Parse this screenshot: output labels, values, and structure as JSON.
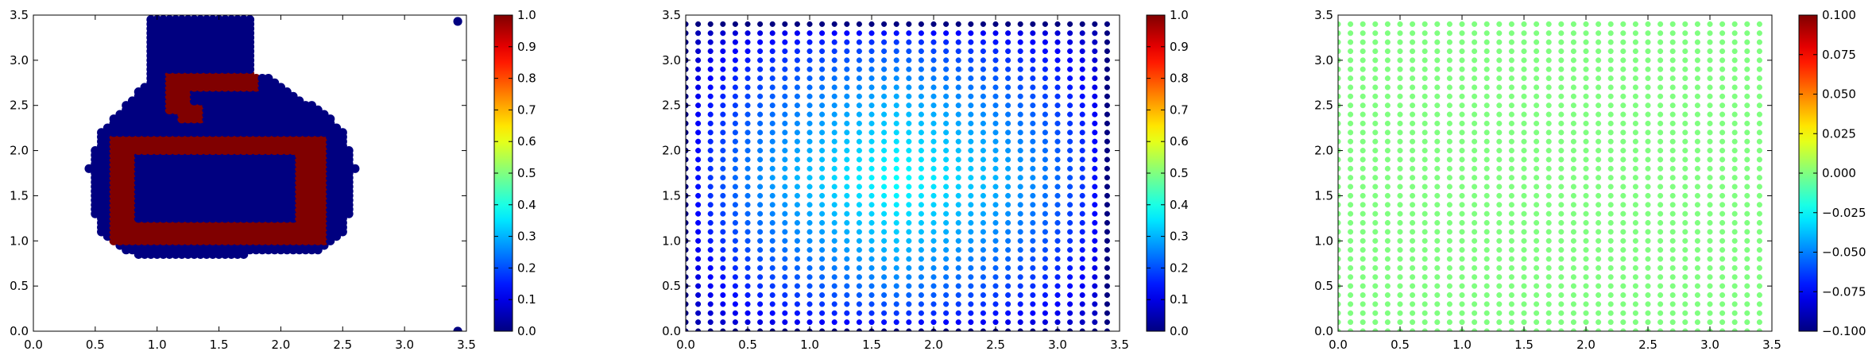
{
  "chart_data": [
    {
      "type": "scatter",
      "title": "",
      "xlabel": "",
      "ylabel": "",
      "xlim": [
        0,
        3.5
      ],
      "ylim": [
        0,
        3.5
      ],
      "grid": false,
      "x_ticks": [
        "0.0",
        "0.5",
        "1.0",
        "1.5",
        "2.0",
        "2.5",
        "3.0",
        "3.5"
      ],
      "y_ticks": [
        "0.0",
        "0.5",
        "1.0",
        "1.5",
        "2.0",
        "2.5",
        "3.0",
        "3.5"
      ],
      "colorbar": {
        "range": [
          0,
          1
        ],
        "colormap": "jet",
        "ticks": [
          "0.0",
          "0.1",
          "0.2",
          "0.3",
          "0.4",
          "0.5",
          "0.6",
          "0.7",
          "0.8",
          "0.9",
          "1.0"
        ]
      },
      "grid_points": {
        "start": 0.0,
        "stop": 3.45,
        "step": 0.05
      },
      "description": "bottle-shaped region of points with values 0 (blue) and a rectangular ring plus hook with value 1 (red)",
      "shape": {
        "neck": {
          "x_range": [
            0.95,
            1.75
          ],
          "y_range": [
            2.8,
            3.45
          ]
        },
        "body_rows": [
          [
            0.85,
            0.85,
            1.7
          ],
          [
            0.9,
            0.75,
            2.3
          ],
          [
            1.0,
            0.65,
            2.4
          ],
          [
            1.1,
            0.55,
            2.5
          ],
          [
            1.3,
            0.5,
            2.55
          ],
          [
            1.8,
            0.45,
            2.6
          ],
          [
            2.0,
            0.5,
            2.55
          ],
          [
            2.2,
            0.55,
            2.5
          ],
          [
            2.35,
            0.65,
            2.4
          ],
          [
            2.5,
            0.75,
            2.25
          ],
          [
            2.65,
            0.85,
            2.05
          ],
          [
            2.8,
            0.95,
            1.9
          ]
        ],
        "value_one_regions": [
          {
            "name": "ring-outer",
            "x_range": [
              0.65,
              2.35
            ],
            "y_range": [
              1.0,
              2.15
            ],
            "value": 1
          },
          {
            "name": "ring-hole",
            "x_range": [
              0.85,
              2.1
            ],
            "y_range": [
              1.25,
              1.95
            ],
            "value": 0
          },
          {
            "name": "hook-top",
            "x_range": [
              1.1,
              1.8
            ],
            "y_range": [
              2.7,
              2.85
            ],
            "value": 1
          },
          {
            "name": "hook-side",
            "x_range": [
              1.1,
              1.25
            ],
            "y_range": [
              2.45,
              2.85
            ],
            "value": 1
          },
          {
            "name": "hook-foot",
            "x_range": [
              1.2,
              1.35
            ],
            "y_range": [
              2.35,
              2.5
            ],
            "value": 1
          }
        ],
        "outlier_point": {
          "x": 3.43,
          "y": 3.43,
          "value": 0
        },
        "outlier_point_bottom": {
          "x": 3.43,
          "y": 0.0,
          "value": 0
        }
      }
    },
    {
      "type": "scatter",
      "title": "",
      "xlabel": "",
      "ylabel": "",
      "xlim": [
        0,
        3.5
      ],
      "ylim": [
        0,
        3.5
      ],
      "grid": false,
      "x_ticks": [
        "0.0",
        "0.5",
        "1.0",
        "1.5",
        "2.0",
        "2.5",
        "3.0",
        "3.5"
      ],
      "y_ticks": [
        "0.0",
        "0.5",
        "1.0",
        "1.5",
        "2.0",
        "2.5",
        "3.0",
        "3.5"
      ],
      "colorbar": {
        "range": [
          0,
          1
        ],
        "colormap": "jet",
        "ticks": [
          "0.0",
          "0.1",
          "0.2",
          "0.3",
          "0.4",
          "0.5",
          "0.6",
          "0.7",
          "0.8",
          "0.9",
          "1.0"
        ]
      },
      "grid_points": {
        "start": 0.0,
        "stop": 3.4,
        "step": 0.1
      },
      "description": "regular grid; value peaks near 0.38 in the center and falls to 0 at the border",
      "field": {
        "peak_value": 0.38,
        "center": [
          1.7,
          1.7
        ],
        "edge_value": 0.0
      }
    },
    {
      "type": "scatter",
      "title": "",
      "xlabel": "",
      "ylabel": "",
      "xlim": [
        0,
        3.5
      ],
      "ylim": [
        0,
        3.5
      ],
      "grid": false,
      "x_ticks": [
        "0.0",
        "0.5",
        "1.0",
        "1.5",
        "2.0",
        "2.5",
        "3.0",
        "3.5"
      ],
      "y_ticks": [
        "0.0",
        "0.5",
        "1.0",
        "1.5",
        "2.0",
        "2.5",
        "3.0",
        "3.5"
      ],
      "colorbar": {
        "range": [
          -0.1,
          0.1
        ],
        "colormap": "jet",
        "ticks": [
          "−0.100",
          "−0.075",
          "−0.050",
          "−0.025",
          "0.000",
          "0.025",
          "0.050",
          "0.075",
          "0.100"
        ]
      },
      "grid_points": {
        "start": 0.0,
        "stop": 3.4,
        "step": 0.1
      },
      "description": "regular grid; every point has value 0",
      "field": {
        "constant_value": 0.0
      }
    }
  ]
}
